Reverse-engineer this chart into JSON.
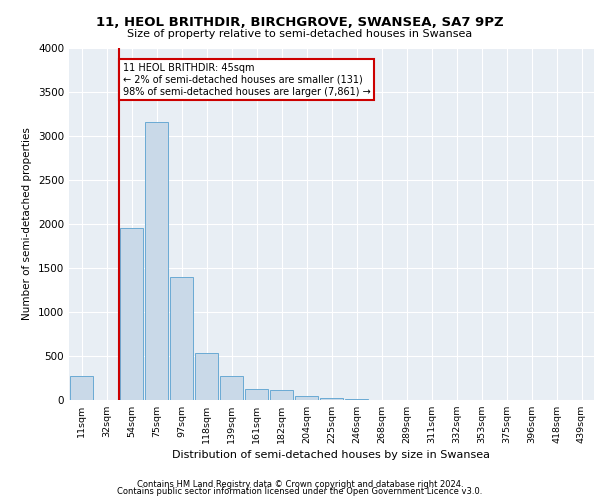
{
  "title": "11, HEOL BRITHDIR, BIRCHGROVE, SWANSEA, SA7 9PZ",
  "subtitle": "Size of property relative to semi-detached houses in Swansea",
  "xlabel": "Distribution of semi-detached houses by size in Swansea",
  "ylabel": "Number of semi-detached properties",
  "footer1": "Contains HM Land Registry data © Crown copyright and database right 2024.",
  "footer2": "Contains public sector information licensed under the Open Government Licence v3.0.",
  "annotation_line1": "11 HEOL BRITHDIR: 45sqm",
  "annotation_line2": "← 2% of semi-detached houses are smaller (131)",
  "annotation_line3": "98% of semi-detached houses are larger (7,861) →",
  "bar_labels": [
    "11sqm",
    "32sqm",
    "54sqm",
    "75sqm",
    "97sqm",
    "118sqm",
    "139sqm",
    "161sqm",
    "182sqm",
    "204sqm",
    "225sqm",
    "246sqm",
    "268sqm",
    "289sqm",
    "311sqm",
    "332sqm",
    "353sqm",
    "375sqm",
    "396sqm",
    "418sqm",
    "439sqm"
  ],
  "bar_values": [
    270,
    5,
    1950,
    3150,
    1400,
    530,
    270,
    120,
    110,
    40,
    20,
    10,
    3,
    1,
    0,
    0,
    0,
    0,
    0,
    0,
    0
  ],
  "bar_color": "#c9d9e8",
  "bar_edge_color": "#6aaad4",
  "property_line_color": "#cc0000",
  "annotation_box_color": "#cc0000",
  "background_color": "#e8eef4",
  "ylim": [
    0,
    4000
  ],
  "yticks": [
    0,
    500,
    1000,
    1500,
    2000,
    2500,
    3000,
    3500,
    4000
  ],
  "property_line_x": 1.5
}
